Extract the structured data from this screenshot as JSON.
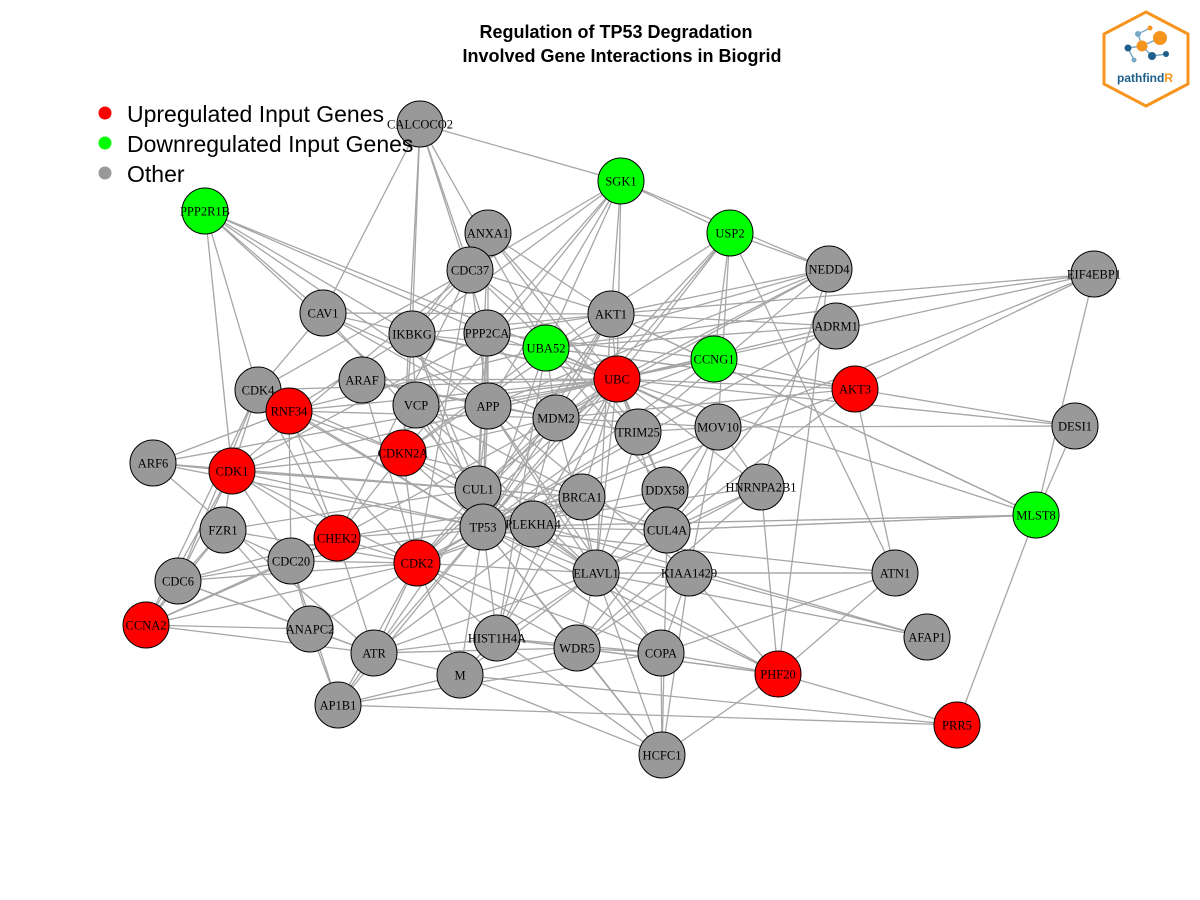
{
  "title_line1": "Regulation of TP53 Degradation",
  "title_line2": "Involved Gene Interactions in Biogrid",
  "legend": [
    {
      "label": "Upregulated Input Genes",
      "color": "#ff0000"
    },
    {
      "label": "Downregulated Input Genes",
      "color": "#00ff00"
    },
    {
      "label": "Other",
      "color": "#999999"
    }
  ],
  "logo": {
    "text_main": "pathfind",
    "text_accent": "R",
    "accent_color": "#f7941d",
    "main_color": "#1f5f8b"
  },
  "colors": {
    "up": "#ff0000",
    "down": "#00ff00",
    "other": "#999999",
    "edge": "#a6a6a6"
  },
  "nodes": [
    {
      "id": "CALCOCO2",
      "type": "other"
    },
    {
      "id": "SGK1",
      "type": "down"
    },
    {
      "id": "PPP2R1B",
      "type": "down"
    },
    {
      "id": "ANXA1",
      "type": "other"
    },
    {
      "id": "USP2",
      "type": "down"
    },
    {
      "id": "NEDD4",
      "type": "other"
    },
    {
      "id": "EIF4EBP1",
      "type": "other"
    },
    {
      "id": "CDC37",
      "type": "other"
    },
    {
      "id": "CAV1",
      "type": "other"
    },
    {
      "id": "IKBKG",
      "type": "other"
    },
    {
      "id": "PPP2CA",
      "type": "other"
    },
    {
      "id": "UBA52",
      "type": "down"
    },
    {
      "id": "AKT1",
      "type": "other"
    },
    {
      "id": "ADRM1",
      "type": "other"
    },
    {
      "id": "CCNG1",
      "type": "down"
    },
    {
      "id": "CDK4",
      "type": "other"
    },
    {
      "id": "ARAF",
      "type": "other"
    },
    {
      "id": "UBC",
      "type": "up"
    },
    {
      "id": "AKT3",
      "type": "up"
    },
    {
      "id": "RNF34",
      "type": "up"
    },
    {
      "id": "VCP",
      "type": "other"
    },
    {
      "id": "APP",
      "type": "other"
    },
    {
      "id": "MDM2",
      "type": "other"
    },
    {
      "id": "TRIM25",
      "type": "other"
    },
    {
      "id": "MOV10",
      "type": "other"
    },
    {
      "id": "DESI1",
      "type": "other"
    },
    {
      "id": "ARF6",
      "type": "other"
    },
    {
      "id": "CDKN2A",
      "type": "up"
    },
    {
      "id": "CDK1",
      "type": "up"
    },
    {
      "id": "CUL1",
      "type": "other"
    },
    {
      "id": "DDX58",
      "type": "other"
    },
    {
      "id": "HNRNPA2B1",
      "type": "other"
    },
    {
      "id": "BRCA1",
      "type": "other"
    },
    {
      "id": "MLST8",
      "type": "down"
    },
    {
      "id": "FZR1",
      "type": "other"
    },
    {
      "id": "CHEK2",
      "type": "up"
    },
    {
      "id": "TP53",
      "type": "other"
    },
    {
      "id": "PLEKHA4",
      "type": "other"
    },
    {
      "id": "CUL4A",
      "type": "other"
    },
    {
      "id": "CDC20",
      "type": "other"
    },
    {
      "id": "CDK2",
      "type": "up"
    },
    {
      "id": "CDC6",
      "type": "other"
    },
    {
      "id": "ELAVL1",
      "type": "other"
    },
    {
      "id": "KIAA1429",
      "type": "other"
    },
    {
      "id": "ATN1",
      "type": "other"
    },
    {
      "id": "CCNA2",
      "type": "up"
    },
    {
      "id": "ANAPC2",
      "type": "other"
    },
    {
      "id": "AFAP1",
      "type": "other"
    },
    {
      "id": "HIST1H4A",
      "type": "other"
    },
    {
      "id": "ATR",
      "type": "other"
    },
    {
      "id": "WDR5",
      "type": "other"
    },
    {
      "id": "COPA",
      "type": "other"
    },
    {
      "id": "M",
      "type": "other"
    },
    {
      "id": "PHF20",
      "type": "up"
    },
    {
      "id": "AP1B1",
      "type": "other"
    },
    {
      "id": "PRR5",
      "type": "up"
    },
    {
      "id": "HCFC1",
      "type": "other"
    }
  ],
  "edges": [
    [
      "CALCOCO2",
      "SGK1"
    ],
    [
      "CALCOCO2",
      "CAV1"
    ],
    [
      "CALCOCO2",
      "IKBKG"
    ],
    [
      "CALCOCO2",
      "CDC37"
    ],
    [
      "CALCOCO2",
      "PPP2CA"
    ],
    [
      "CALCOCO2",
      "UBA52"
    ],
    [
      "CALCOCO2",
      "CDKN2A"
    ],
    [
      "SGK1",
      "USP2"
    ],
    [
      "SGK1",
      "NEDD4"
    ],
    [
      "SGK1",
      "AKT1"
    ],
    [
      "SGK1",
      "UBC"
    ],
    [
      "SGK1",
      "IKBKG"
    ],
    [
      "SGK1",
      "CDC37"
    ],
    [
      "SGK1",
      "PPP2CA"
    ],
    [
      "SGK1",
      "APP"
    ],
    [
      "SGK1",
      "CDKN2A"
    ],
    [
      "SGK1",
      "UBA52"
    ],
    [
      "PPP2R1B",
      "CAV1"
    ],
    [
      "PPP2R1B",
      "IKBKG"
    ],
    [
      "PPP2R1B",
      "PPP2CA"
    ],
    [
      "PPP2R1B",
      "UBA52"
    ],
    [
      "PPP2R1B",
      "CDK1"
    ],
    [
      "PPP2R1B",
      "VCP"
    ],
    [
      "PPP2R1B",
      "CDK4"
    ],
    [
      "PPP2R1B",
      "APP"
    ],
    [
      "ANXA1",
      "UBC"
    ],
    [
      "ANXA1",
      "AKT1"
    ],
    [
      "ANXA1",
      "APP"
    ],
    [
      "ANXA1",
      "IKBKG"
    ],
    [
      "ANXA1",
      "TRIM25"
    ],
    [
      "ANXA1",
      "CUL1"
    ],
    [
      "USP2",
      "NEDD4"
    ],
    [
      "USP2",
      "UBC"
    ],
    [
      "USP2",
      "MDM2"
    ],
    [
      "USP2",
      "UBA52"
    ],
    [
      "USP2",
      "CCNG1"
    ],
    [
      "USP2",
      "TP53"
    ],
    [
      "USP2",
      "MOV10"
    ],
    [
      "USP2",
      "ATN1"
    ],
    [
      "NEDD4",
      "UBC"
    ],
    [
      "NEDD4",
      "UBA52"
    ],
    [
      "NEDD4",
      "AKT1"
    ],
    [
      "NEDD4",
      "MDM2"
    ],
    [
      "NEDD4",
      "APP"
    ],
    [
      "NEDD4",
      "HNRNPA2B1"
    ],
    [
      "NEDD4",
      "PHF20"
    ],
    [
      "NEDD4",
      "TRIM25"
    ],
    [
      "EIF4EBP1",
      "AKT1"
    ],
    [
      "EIF4EBP1",
      "UBC"
    ],
    [
      "EIF4EBP1",
      "MLST8"
    ],
    [
      "EIF4EBP1",
      "MOV10"
    ],
    [
      "EIF4EBP1",
      "AKT3"
    ],
    [
      "EIF4EBP1",
      "UBA52"
    ],
    [
      "CDC37",
      "AKT1"
    ],
    [
      "CDC37",
      "CDK4"
    ],
    [
      "CDC37",
      "CDK2"
    ],
    [
      "CDC37",
      "IKBKG"
    ],
    [
      "CDC37",
      "APP"
    ],
    [
      "CDC37",
      "UBC"
    ],
    [
      "CDC37",
      "CHEK2"
    ],
    [
      "CDC37",
      "CDK1"
    ],
    [
      "CDC37",
      "TRIM25"
    ],
    [
      "CAV1",
      "CDK4"
    ],
    [
      "CAV1",
      "APP"
    ],
    [
      "CAV1",
      "MDM2"
    ],
    [
      "CAV1",
      "UBC"
    ],
    [
      "CAV1",
      "CUL1"
    ],
    [
      "CAV1",
      "AKT1"
    ],
    [
      "IKBKG",
      "UBC"
    ],
    [
      "IKBKG",
      "AKT1"
    ],
    [
      "IKBKG",
      "VCP"
    ],
    [
      "IKBKG",
      "UBA52"
    ],
    [
      "IKBKG",
      "TP53"
    ],
    [
      "IKBKG",
      "CDKN2A"
    ],
    [
      "IKBKG",
      "RNF34"
    ],
    [
      "IKBKG",
      "CUL1"
    ],
    [
      "PPP2CA",
      "AKT1"
    ],
    [
      "PPP2CA",
      "TP53"
    ],
    [
      "PPP2CA",
      "CDK1"
    ],
    [
      "PPP2CA",
      "APP"
    ],
    [
      "PPP2CA",
      "MDM2"
    ],
    [
      "PPP2CA",
      "UBC"
    ],
    [
      "PPP2CA",
      "CUL1"
    ],
    [
      "UBA52",
      "UBC"
    ],
    [
      "UBA52",
      "MDM2"
    ],
    [
      "UBA52",
      "TP53"
    ],
    [
      "UBA52",
      "CDKN2A"
    ],
    [
      "UBA52",
      "HIST1H4A"
    ],
    [
      "UBA52",
      "MOV10"
    ],
    [
      "UBA52",
      "AKT3"
    ],
    [
      "AKT1",
      "MDM2"
    ],
    [
      "AKT1",
      "UBC"
    ],
    [
      "AKT1",
      "TP53"
    ],
    [
      "AKT1",
      "ATR"
    ],
    [
      "AKT1",
      "CDKN2A"
    ],
    [
      "AKT1",
      "ADRM1"
    ],
    [
      "AKT1",
      "ELAVL1"
    ],
    [
      "AKT1",
      "MLST8"
    ],
    [
      "ADRM1",
      "UBC"
    ],
    [
      "ADRM1",
      "UBA52"
    ],
    [
      "ADRM1",
      "CUL4A"
    ],
    [
      "ADRM1",
      "TP53"
    ],
    [
      "CCNG1",
      "MDM2"
    ],
    [
      "CCNG1",
      "TP53"
    ],
    [
      "CCNG1",
      "PPP2CA"
    ],
    [
      "CCNG1",
      "UBC"
    ],
    [
      "CCNG1",
      "AKT3"
    ],
    [
      "CDK4",
      "CDKN2A"
    ],
    [
      "CDK4",
      "TP53"
    ],
    [
      "CDK4",
      "CDC6"
    ],
    [
      "CDK4",
      "CDK1"
    ],
    [
      "CDK4",
      "CDK2"
    ],
    [
      "CDK4",
      "UBC"
    ],
    [
      "ARAF",
      "APP"
    ],
    [
      "ARAF",
      "UBC"
    ],
    [
      "ARAF",
      "MDM2"
    ],
    [
      "ARAF",
      "CDK2"
    ],
    [
      "UBC",
      "MDM2"
    ],
    [
      "UBC",
      "TP53"
    ],
    [
      "UBC",
      "CUL1"
    ],
    [
      "UBC",
      "BRCA1"
    ],
    [
      "UBC",
      "VCP"
    ],
    [
      "UBC",
      "AKT3"
    ],
    [
      "UBC",
      "DESI1"
    ],
    [
      "UBC",
      "MOV10"
    ],
    [
      "UBC",
      "CUL4A"
    ],
    [
      "UBC",
      "ELAVL1"
    ],
    [
      "UBC",
      "DDX58"
    ],
    [
      "UBC",
      "PLEKHA4"
    ],
    [
      "UBC",
      "CDK2"
    ],
    [
      "UBC",
      "HIST1H4A"
    ],
    [
      "AKT3",
      "MDM2"
    ],
    [
      "AKT3",
      "TP53"
    ],
    [
      "AKT3",
      "DESI1"
    ],
    [
      "AKT3",
      "ATN1"
    ],
    [
      "AKT3",
      "CUL4A"
    ],
    [
      "AKT3",
      "UBA52"
    ],
    [
      "RNF34",
      "TP53"
    ],
    [
      "RNF34",
      "UBC"
    ],
    [
      "RNF34",
      "MDM2"
    ],
    [
      "RNF34",
      "UBA52"
    ],
    [
      "RNF34",
      "CHEK2"
    ],
    [
      "RNF34",
      "CDKN2A"
    ],
    [
      "RNF34",
      "CDC20"
    ],
    [
      "VCP",
      "UBC"
    ],
    [
      "VCP",
      "TP53"
    ],
    [
      "VCP",
      "CUL1"
    ],
    [
      "VCP",
      "BRCA1"
    ],
    [
      "VCP",
      "ELAVL1"
    ],
    [
      "APP",
      "UBC"
    ],
    [
      "APP",
      "MDM2"
    ],
    [
      "APP",
      "CUL1"
    ],
    [
      "APP",
      "TP53"
    ],
    [
      "APP",
      "ELAVL1"
    ],
    [
      "APP",
      "COPA"
    ],
    [
      "APP",
      "KIAA1429"
    ],
    [
      "MDM2",
      "TP53"
    ],
    [
      "MDM2",
      "CDKN2A"
    ],
    [
      "MDM2",
      "CUL1"
    ],
    [
      "MDM2",
      "CHEK2"
    ],
    [
      "MDM2",
      "CDK2"
    ],
    [
      "MDM2",
      "TRIM25"
    ],
    [
      "MDM2",
      "ELAVL1"
    ],
    [
      "MDM2",
      "HIST1H4A"
    ],
    [
      "MDM2",
      "MOV10"
    ],
    [
      "TRIM25",
      "UBC"
    ],
    [
      "TRIM25",
      "DDX58"
    ],
    [
      "TRIM25",
      "TP53"
    ],
    [
      "TRIM25",
      "ELAVL1"
    ],
    [
      "TRIM25",
      "MOV10"
    ],
    [
      "MOV10",
      "ELAVL1"
    ],
    [
      "MOV10",
      "HNRNPA2B1"
    ],
    [
      "MOV10",
      "DESI1"
    ],
    [
      "MOV10",
      "CUL4A"
    ],
    [
      "MOV10",
      "TP53"
    ],
    [
      "MOV10",
      "KIAA1429"
    ],
    [
      "DESI1",
      "MLST8"
    ],
    [
      "ARF6",
      "CDK1"
    ],
    [
      "ARF6",
      "CUL1"
    ],
    [
      "ARF6",
      "TP53"
    ],
    [
      "ARF6",
      "RNF34"
    ],
    [
      "ARF6",
      "ATR"
    ],
    [
      "ARF6",
      "UBC"
    ],
    [
      "CDKN2A",
      "TP53"
    ],
    [
      "CDKN2A",
      "CDK2"
    ],
    [
      "CDKN2A",
      "CUL1"
    ],
    [
      "CDKN2A",
      "CDK1"
    ],
    [
      "CDKN2A",
      "CHEK2"
    ],
    [
      "CDKN2A",
      "BRCA1"
    ],
    [
      "CDKN2A",
      "ELAVL1"
    ],
    [
      "CDK1",
      "CDK2"
    ],
    [
      "CDK1",
      "TP53"
    ],
    [
      "CDK1",
      "FZR1"
    ],
    [
      "CDK1",
      "CCNA2"
    ],
    [
      "CDK1",
      "CDC20"
    ],
    [
      "CDK1",
      "CDC6"
    ],
    [
      "CDK1",
      "BRCA1"
    ],
    [
      "CDK1",
      "CHEK2"
    ],
    [
      "CDK1",
      "CUL1"
    ],
    [
      "CDK1",
      "UBC"
    ],
    [
      "CUL1",
      "TP53"
    ],
    [
      "CUL1",
      "BRCA1"
    ],
    [
      "CUL1",
      "CUL4A"
    ],
    [
      "CUL1",
      "CDK2"
    ],
    [
      "CUL1",
      "FZR1"
    ],
    [
      "CUL1",
      "ELAVL1"
    ],
    [
      "DDX58",
      "TP53"
    ],
    [
      "DDX58",
      "ELAVL1"
    ],
    [
      "DDX58",
      "UBA52"
    ],
    [
      "DDX58",
      "MOV10"
    ],
    [
      "HNRNPA2B1",
      "TP53"
    ],
    [
      "HNRNPA2B1",
      "ELAVL1"
    ],
    [
      "HNRNPA2B1",
      "PHF20"
    ],
    [
      "HNRNPA2B1",
      "CUL4A"
    ],
    [
      "HNRNPA2B1",
      "WDR5"
    ],
    [
      "HNRNPA2B1",
      "UBC"
    ],
    [
      "BRCA1",
      "TP53"
    ],
    [
      "BRCA1",
      "CHEK2"
    ],
    [
      "BRCA1",
      "CDK2"
    ],
    [
      "BRCA1",
      "ATR"
    ],
    [
      "BRCA1",
      "CUL4A"
    ],
    [
      "BRCA1",
      "HIST1H4A"
    ],
    [
      "BRCA1",
      "ELAVL1"
    ],
    [
      "MLST8",
      "AKT1"
    ],
    [
      "MLST8",
      "PRR5"
    ],
    [
      "MLST8",
      "UBC"
    ],
    [
      "MLST8",
      "TP53"
    ],
    [
      "MLST8",
      "CUL4A"
    ],
    [
      "FZR1",
      "CDC20"
    ],
    [
      "FZR1",
      "CDC6"
    ],
    [
      "FZR1",
      "CCNA2"
    ],
    [
      "FZR1",
      "ANAPC2"
    ],
    [
      "FZR1",
      "CDK2"
    ],
    [
      "CHEK2",
      "TP53"
    ],
    [
      "CHEK2",
      "CDK2"
    ],
    [
      "CHEK2",
      "ATR"
    ],
    [
      "CHEK2",
      "CDC6"
    ],
    [
      "CHEK2",
      "CCNA2"
    ],
    [
      "CHEK2",
      "CDC20"
    ],
    [
      "CHEK2",
      "CDK4"
    ],
    [
      "TP53",
      "CDK2"
    ],
    [
      "TP53",
      "CUL4A"
    ],
    [
      "TP53",
      "ELAVL1"
    ],
    [
      "TP53",
      "HIST1H4A"
    ],
    [
      "TP53",
      "ATR"
    ],
    [
      "TP53",
      "WDR5"
    ],
    [
      "TP53",
      "KIAA1429"
    ],
    [
      "TP53",
      "PHF20"
    ],
    [
      "TP53",
      "ATN1"
    ],
    [
      "TP53",
      "COPA"
    ],
    [
      "TP53",
      "CDC20"
    ],
    [
      "TP53",
      "ANAPC2"
    ],
    [
      "TP53",
      "M"
    ],
    [
      "TP53",
      "AP1B1"
    ],
    [
      "TP53",
      "HCFC1"
    ],
    [
      "PLEKHA4",
      "ELAVL1"
    ],
    [
      "PLEKHA4",
      "UBC"
    ],
    [
      "PLEKHA4",
      "CDK2"
    ],
    [
      "PLEKHA4",
      "TP53"
    ],
    [
      "PLEKHA4",
      "AFAP1"
    ],
    [
      "CUL4A",
      "ELAVL1"
    ],
    [
      "CUL4A",
      "KIAA1429"
    ],
    [
      "CUL4A",
      "DDX58"
    ],
    [
      "CUL4A",
      "WDR5"
    ],
    [
      "CUL4A",
      "HCFC1"
    ],
    [
      "CUL4A",
      "MLST8"
    ],
    [
      "CDC20",
      "CDC6"
    ],
    [
      "CDC20",
      "CCNA2"
    ],
    [
      "CDC20",
      "ANAPC2"
    ],
    [
      "CDC20",
      "CDK2"
    ],
    [
      "CDC20",
      "AP1B1"
    ],
    [
      "CDK2",
      "CDC6"
    ],
    [
      "CDK2",
      "CCNA2"
    ],
    [
      "CDK2",
      "ATR"
    ],
    [
      "CDK2",
      "HIST1H4A"
    ],
    [
      "CDK2",
      "ELAVL1"
    ],
    [
      "CDK2",
      "AP1B1"
    ],
    [
      "CDK2",
      "M"
    ],
    [
      "CDK2",
      "COPA"
    ],
    [
      "CDK2",
      "WDR5"
    ],
    [
      "CDC6",
      "CCNA2"
    ],
    [
      "CDC6",
      "ANAPC2"
    ],
    [
      "CDC6",
      "ATR"
    ],
    [
      "ELAVL1",
      "KIAA1429"
    ],
    [
      "ELAVL1",
      "HIST1H4A"
    ],
    [
      "ELAVL1",
      "WDR5"
    ],
    [
      "ELAVL1",
      "COPA"
    ],
    [
      "ELAVL1",
      "ATN1"
    ],
    [
      "ELAVL1",
      "HCFC1"
    ],
    [
      "ELAVL1",
      "PHF20"
    ],
    [
      "ELAVL1",
      "AFAP1"
    ],
    [
      "ELAVL1",
      "M"
    ],
    [
      "ELAVL1",
      "ATR"
    ],
    [
      "KIAA1429",
      "WDR5"
    ],
    [
      "KIAA1429",
      "COPA"
    ],
    [
      "KIAA1429",
      "HCFC1"
    ],
    [
      "KIAA1429",
      "ATN1"
    ],
    [
      "KIAA1429",
      "PHF20"
    ],
    [
      "KIAA1429",
      "AFAP1"
    ],
    [
      "ATN1",
      "PHF20"
    ],
    [
      "ATN1",
      "COPA"
    ],
    [
      "CCNA2",
      "ANAPC2"
    ],
    [
      "CCNA2",
      "CDK4"
    ],
    [
      "CCNA2",
      "ATR"
    ],
    [
      "ANAPC2",
      "AP1B1"
    ],
    [
      "ANAPC2",
      "ATR"
    ],
    [
      "HIST1H4A",
      "WDR5"
    ],
    [
      "HIST1H4A",
      "HCFC1"
    ],
    [
      "HIST1H4A",
      "COPA"
    ],
    [
      "HIST1H4A",
      "ATR"
    ],
    [
      "HIST1H4A",
      "PHF20"
    ],
    [
      "HIST1H4A",
      "M"
    ],
    [
      "ATR",
      "WDR5"
    ],
    [
      "ATR",
      "M"
    ],
    [
      "ATR",
      "AP1B1"
    ],
    [
      "WDR5",
      "HCFC1"
    ],
    [
      "WDR5",
      "COPA"
    ],
    [
      "WDR5",
      "PHF20"
    ],
    [
      "WDR5",
      "M"
    ],
    [
      "COPA",
      "HCFC1"
    ],
    [
      "COPA",
      "PHF20"
    ],
    [
      "M",
      "PRR5"
    ],
    [
      "M",
      "AP1B1"
    ],
    [
      "M",
      "HCFC1"
    ],
    [
      "PHF20",
      "HCFC1"
    ],
    [
      "PHF20",
      "PRR5"
    ],
    [
      "AP1B1",
      "PRR5"
    ],
    [
      "AP1B1",
      "COPA"
    ]
  ]
}
